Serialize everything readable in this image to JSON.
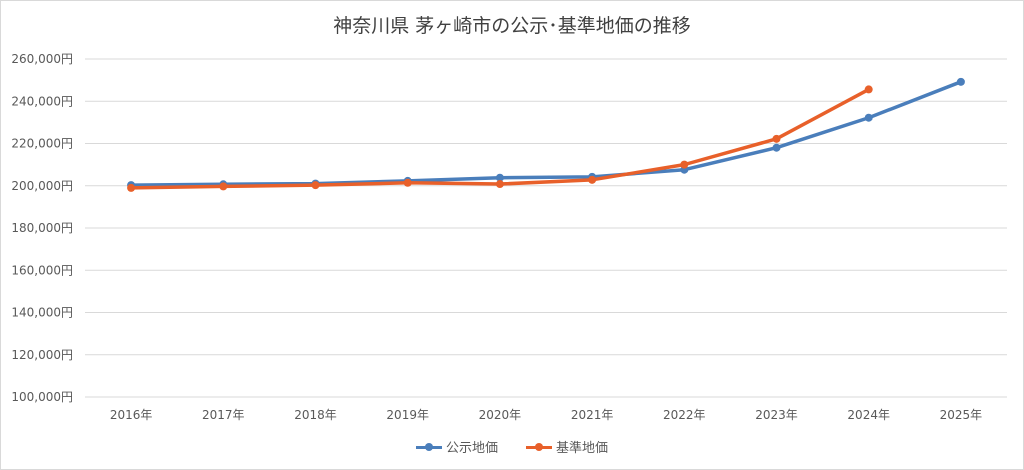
{
  "chart_data": {
    "type": "line",
    "title": "神奈川県 茅ヶ崎市の公示･基準地価の推移",
    "categories": [
      "2016年",
      "2017年",
      "2018年",
      "2019年",
      "2020年",
      "2021年",
      "2022年",
      "2023年",
      "2024年",
      "2025年"
    ],
    "series": [
      {
        "name": "公示地価",
        "color": "#4a7ebb",
        "values": [
          200300,
          200700,
          201000,
          202300,
          203800,
          204200,
          207600,
          218000,
          232200,
          249200
        ]
      },
      {
        "name": "基準地価",
        "color": "#e8602a",
        "values": [
          199000,
          199700,
          200300,
          201400,
          200800,
          202800,
          210000,
          222200,
          245600,
          null
        ]
      }
    ],
    "ylim": [
      100000,
      260000
    ],
    "yticks": [
      100000,
      120000,
      140000,
      160000,
      180000,
      200000,
      220000,
      240000,
      260000
    ],
    "ytick_labels": [
      "100,000円",
      "120,000円",
      "140,000円",
      "160,000円",
      "180,000円",
      "200,000円",
      "220,000円",
      "240,000円",
      "260,000円"
    ],
    "grid": true,
    "legend_position": "bottom"
  }
}
